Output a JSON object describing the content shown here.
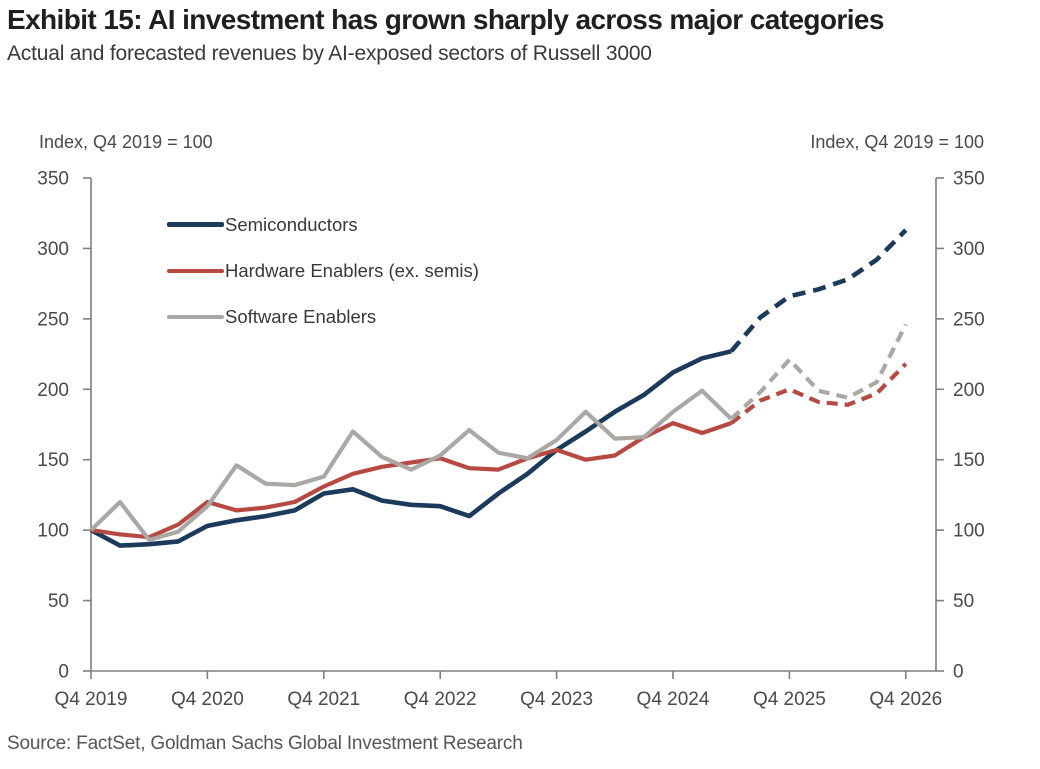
{
  "source_note": "Source: FactSet, Goldman Sachs Global Investment Research",
  "chart_data": {
    "type": "line",
    "title": "Exhibit 15: AI investment has grown sharply across major categories",
    "subtitle": "Actual and forecasted revenues by AI-exposed sectors of Russell 3000",
    "unit_note_left": "Index, Q4 2019 = 100",
    "unit_note_right": "Index, Q4 2019 = 100",
    "ylim": [
      0,
      350
    ],
    "y_ticks": [
      0,
      50,
      100,
      150,
      200,
      250,
      300,
      350
    ],
    "x_year_ticks": [
      "Q4 2019",
      "Q4 2020",
      "Q4 2021",
      "Q4 2022",
      "Q4 2023",
      "Q4 2024",
      "Q4 2025",
      "Q4 2026"
    ],
    "x": [
      "Q4 2019",
      "Q1 2020",
      "Q2 2020",
      "Q3 2020",
      "Q4 2020",
      "Q1 2021",
      "Q2 2021",
      "Q3 2021",
      "Q4 2021",
      "Q1 2022",
      "Q2 2022",
      "Q3 2022",
      "Q4 2022",
      "Q1 2023",
      "Q2 2023",
      "Q3 2023",
      "Q4 2023",
      "Q1 2024",
      "Q2 2024",
      "Q3 2024",
      "Q4 2024",
      "Q1 2025",
      "Q2 2025",
      "Q3 2025",
      "Q4 2025",
      "Q1 2026",
      "Q2 2026",
      "Q3 2026",
      "Q4 2026"
    ],
    "forecast_dashed_from_index": 22,
    "grid": false,
    "legend_position": "top-left-inside",
    "axes": "dual-y-mirrored",
    "series": [
      {
        "name": "Semiconductors",
        "color": "#1b3a5c",
        "line_width": 4.6,
        "values": [
          100,
          89,
          90,
          92,
          103,
          107,
          110,
          114,
          126,
          129,
          121,
          118,
          117,
          110,
          126,
          140,
          157,
          170,
          184,
          196,
          212,
          222,
          227,
          251,
          266,
          271,
          278,
          292,
          313
        ]
      },
      {
        "name": "Hardware Enablers (ex. semis)",
        "color": "#b64a42",
        "line_width": 4.2,
        "values": [
          100,
          97,
          95,
          104,
          120,
          114,
          116,
          120,
          131,
          140,
          145,
          148,
          151,
          144,
          143,
          151,
          157,
          150,
          153,
          166,
          176,
          169,
          176,
          192,
          200,
          191,
          189,
          197,
          218
        ]
      },
      {
        "name": "Software Enablers",
        "color": "#aaa8a4",
        "line_width": 4.2,
        "values": [
          100,
          120,
          93,
          99,
          117,
          146,
          133,
          132,
          138,
          170,
          152,
          143,
          153,
          171,
          155,
          151,
          164,
          184,
          165,
          166,
          184,
          199,
          179,
          198,
          221,
          199,
          194,
          205,
          246
        ]
      }
    ]
  }
}
